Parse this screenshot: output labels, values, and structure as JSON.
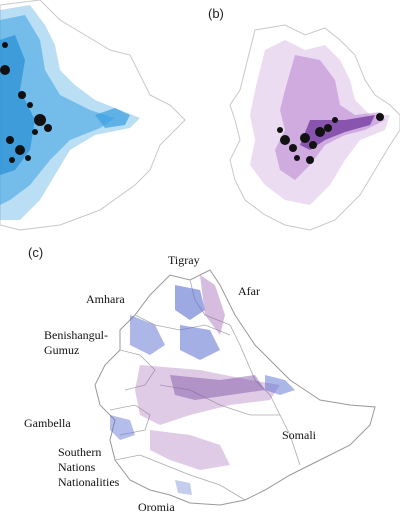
{
  "panels": {
    "b": {
      "label": "(b)"
    },
    "c": {
      "label": "(c)"
    }
  },
  "regions": {
    "tigray": "Tigray",
    "afar": "Afar",
    "amhara": "Amhara",
    "benishangul_1": "Benishangul-",
    "benishangul_2": "Gumuz",
    "gambella": "Gambella",
    "somali": "Somali",
    "snnp_1": "Southern",
    "snnp_2": "Nations",
    "snnp_3": "Nationalities",
    "oromia": "Oromia"
  },
  "colors": {
    "panel_a_fill": "#3aa0e0",
    "panel_a_hot": "#111111",
    "panel_b_fill": "#9a4fc0",
    "panel_b_dark": "#5a1a8a",
    "panel_c_blue": "#5a6fd0",
    "panel_c_purple": "#a36bb5",
    "outline": "#bbbbbb"
  }
}
